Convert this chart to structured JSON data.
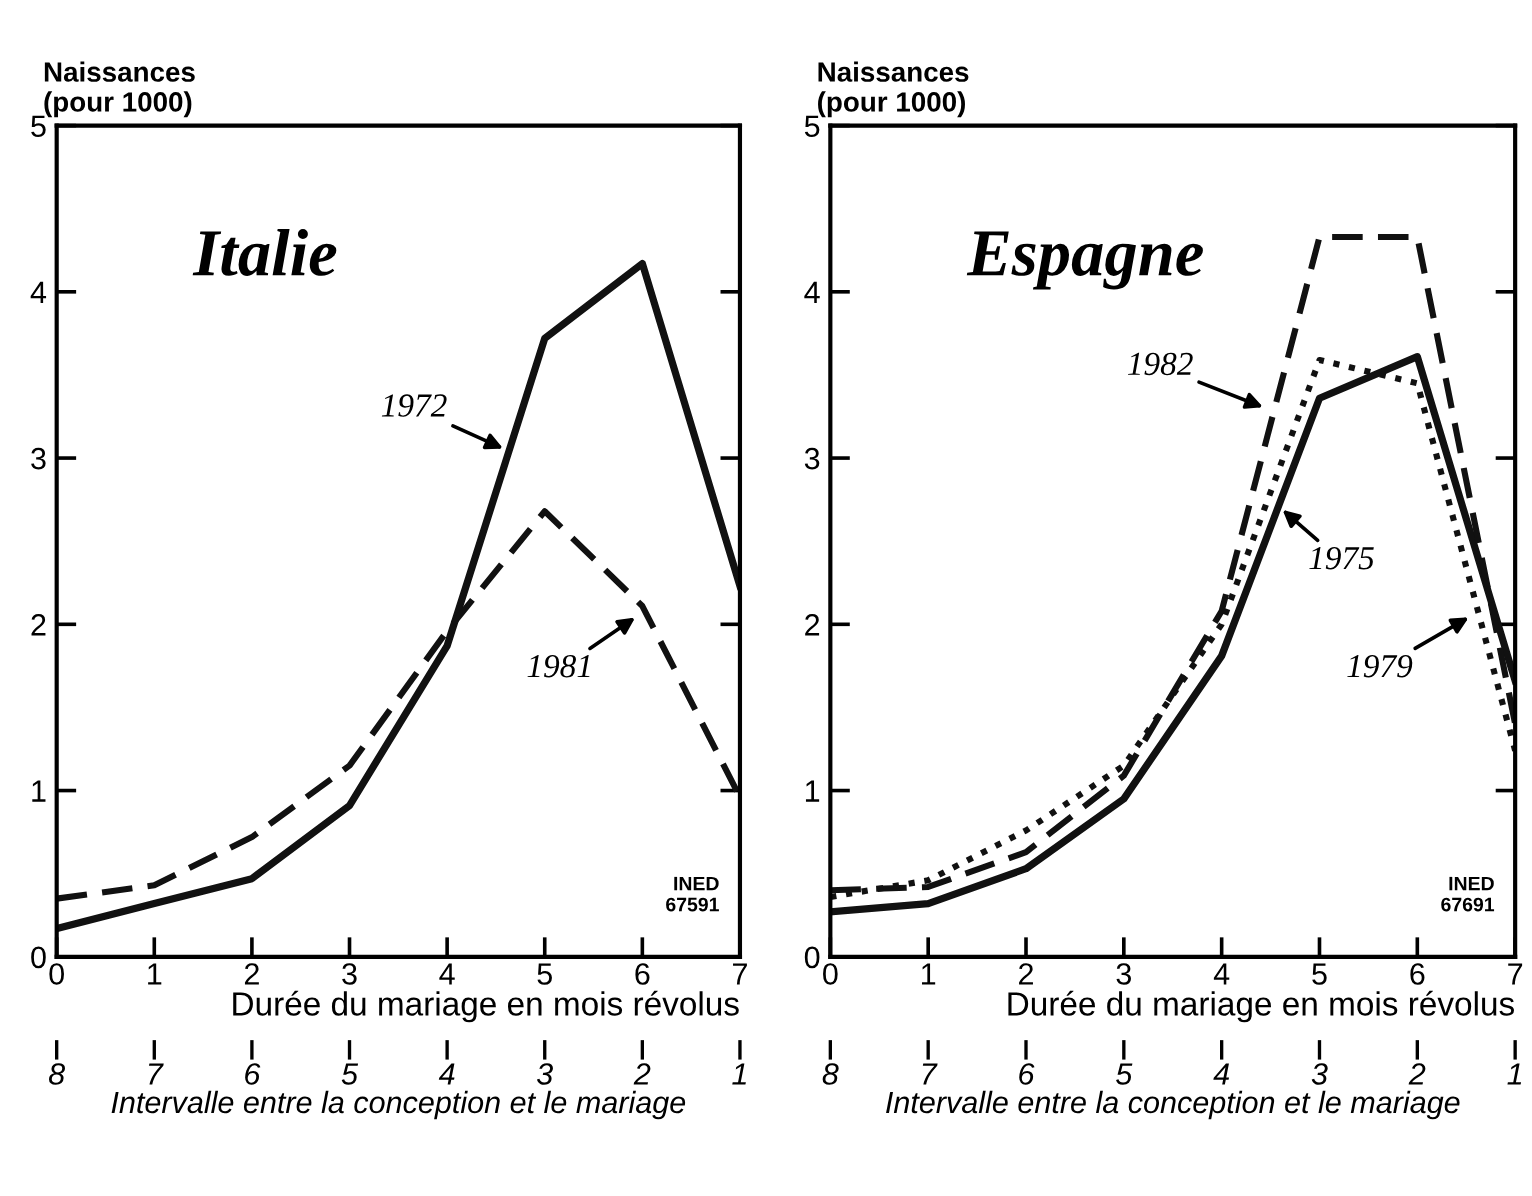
{
  "chart_data": [
    {
      "type": "line",
      "title": "Italie",
      "ylabel": "Naissances\n(pour 1000)",
      "xlabel": "Durée du mariage en mois révolus",
      "x2label": "Intervalle entre la conception et le mariage",
      "x": [
        0,
        1,
        2,
        3,
        4,
        5,
        6,
        7
      ],
      "xlim": [
        0,
        7
      ],
      "xticks": [
        0,
        1,
        2,
        3,
        4,
        5,
        6,
        7
      ],
      "x2lim": [
        8,
        1
      ],
      "x2ticks": [
        8,
        7,
        6,
        5,
        4,
        3,
        2,
        1
      ],
      "ylim": [
        0,
        5
      ],
      "yticks": [
        0,
        1,
        2,
        3,
        4,
        5
      ],
      "grid": false,
      "legend": false,
      "marker": "none",
      "series": [
        {
          "color": "#111111",
          "line_style": "solid",
          "values": [
            0.17,
            0.32,
            0.47,
            0.91,
            1.87,
            3.72,
            4.17,
            2.23
          ]
        },
        {
          "color": "#111111",
          "line_style": "dashed",
          "values": [
            0.35,
            0.43,
            0.72,
            1.15,
            1.96,
            2.68,
            2.11,
            0.96
          ]
        }
      ],
      "annotations": [
        {
          "text": "1972",
          "x": 4.6,
          "y": 3.05
        },
        {
          "text": "1981",
          "x": 5.95,
          "y": 2.05
        },
        "INED\n67591"
      ]
    },
    {
      "type": "line",
      "title": "Espagne",
      "ylabel": "Naissances\n(pour 1000)",
      "xlabel": "Durée du mariage en mois révolus",
      "x2label": "Intervalle entre la conception et le mariage",
      "x": [
        0,
        1,
        2,
        3,
        4,
        5,
        6,
        7
      ],
      "xlim": [
        0,
        7
      ],
      "xticks": [
        0,
        1,
        2,
        3,
        4,
        5,
        6,
        7
      ],
      "x2lim": [
        8,
        1
      ],
      "x2ticks": [
        8,
        7,
        6,
        5,
        4,
        3,
        2,
        1
      ],
      "ylim": [
        0,
        5
      ],
      "yticks": [
        0,
        1,
        2,
        3,
        4,
        5
      ],
      "grid": false,
      "legend": false,
      "marker": "none",
      "series": [
        {
          "color": "#111111",
          "line_style": "solid",
          "values": [
            0.27,
            0.32,
            0.53,
            0.95,
            1.81,
            3.36,
            3.61,
            1.66
          ]
        },
        {
          "color": "#111111",
          "line_style": "dashed",
          "values": [
            0.4,
            0.42,
            0.63,
            1.09,
            2.08,
            4.33,
            4.33,
            1.4
          ]
        },
        {
          "color": "#111111",
          "line_style": "dotted",
          "values": [
            0.36,
            0.46,
            0.76,
            1.15,
            2.0,
            3.59,
            3.45,
            1.24
          ]
        }
      ],
      "annotations": [
        {
          "text": "1982",
          "x": 4.45,
          "y": 3.3
        },
        {
          "text": "1975",
          "x": 4.6,
          "y": 2.7
        },
        {
          "text": "1979",
          "x": 6.55,
          "y": 2.05
        },
        "INED\n67691"
      ]
    }
  ]
}
